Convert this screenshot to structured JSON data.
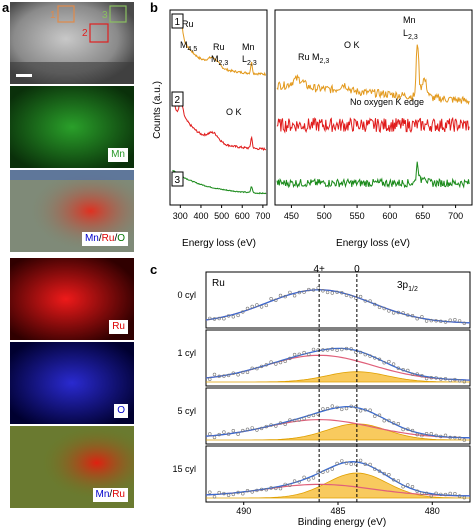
{
  "panel_labels": {
    "a": "a",
    "b": "b",
    "c": "c"
  },
  "panel_a": {
    "roi_labels": [
      "1",
      "2",
      "3"
    ],
    "roi_colors": [
      "#e08a4a",
      "#e02020",
      "#8ac060"
    ],
    "maps": [
      {
        "label": "Mn",
        "color": "#2a9a2a"
      },
      {
        "label_parts": [
          "Mn",
          "/",
          "Ru",
          "/",
          "O"
        ],
        "part_colors": [
          "#0000cc",
          "#000000",
          "#dd0000",
          "#000000",
          "#007700"
        ]
      },
      {
        "label": "Ru",
        "color": "#dd0000"
      },
      {
        "label": "O",
        "color": "#0000cc"
      },
      {
        "label_parts": [
          "Mn",
          "/",
          "Ru"
        ],
        "part_colors": [
          "#0000cc",
          "#000000",
          "#dd0000"
        ]
      }
    ]
  },
  "chart_data": [
    {
      "id": "b-left",
      "type": "line",
      "xlabel": "Energy loss (eV)",
      "ylabel": "Counts (a.u.)",
      "xlim": [
        250,
        720
      ],
      "xticks": [
        300,
        400,
        500,
        600,
        700
      ],
      "series": [
        {
          "name": "1",
          "color": "#e39a1e"
        },
        {
          "name": "2",
          "color": "#e01b1b"
        },
        {
          "name": "3",
          "color": "#1a8a1a"
        }
      ],
      "annotations": [
        {
          "text": "Ru",
          "sub": ""
        },
        {
          "text": "M",
          "sub": "4,5"
        },
        {
          "text": "Ru",
          "sub": ""
        },
        {
          "text": "M",
          "sub": "2,3"
        },
        {
          "text": "Mn",
          "sub": ""
        },
        {
          "text": "L",
          "sub": "2,3"
        },
        {
          "text": "O K",
          "sub": ""
        }
      ]
    },
    {
      "id": "b-right",
      "type": "line",
      "xlabel": "Energy loss (eV)",
      "xlim": [
        425,
        725
      ],
      "xticks": [
        450,
        500,
        550,
        600,
        650,
        700
      ],
      "annotations": [
        {
          "text": "Ru M",
          "sub": "2,3"
        },
        {
          "text": "O K",
          "sub": ""
        },
        {
          "text": "Mn",
          "sub": ""
        },
        {
          "text": "L",
          "sub": "2,3"
        },
        {
          "text": "No oxygen K edge",
          "sub": ""
        }
      ]
    },
    {
      "id": "c",
      "type": "line",
      "xlabel": "Binding energy (eV)",
      "xlim": [
        492,
        478
      ],
      "xticks": [
        490,
        485,
        480
      ],
      "reference_lines": [
        {
          "label": "4+",
          "x": 486.0
        },
        {
          "label": "0",
          "x": 484.0
        }
      ],
      "corner_labels": {
        "element": "Ru",
        "orbital": "3p",
        "orbital_sub": "1/2"
      },
      "series": [
        {
          "name": "0 cyl"
        },
        {
          "name": "1 cyl"
        },
        {
          "name": "5 cyl"
        },
        {
          "name": "15 cyl"
        }
      ]
    }
  ]
}
